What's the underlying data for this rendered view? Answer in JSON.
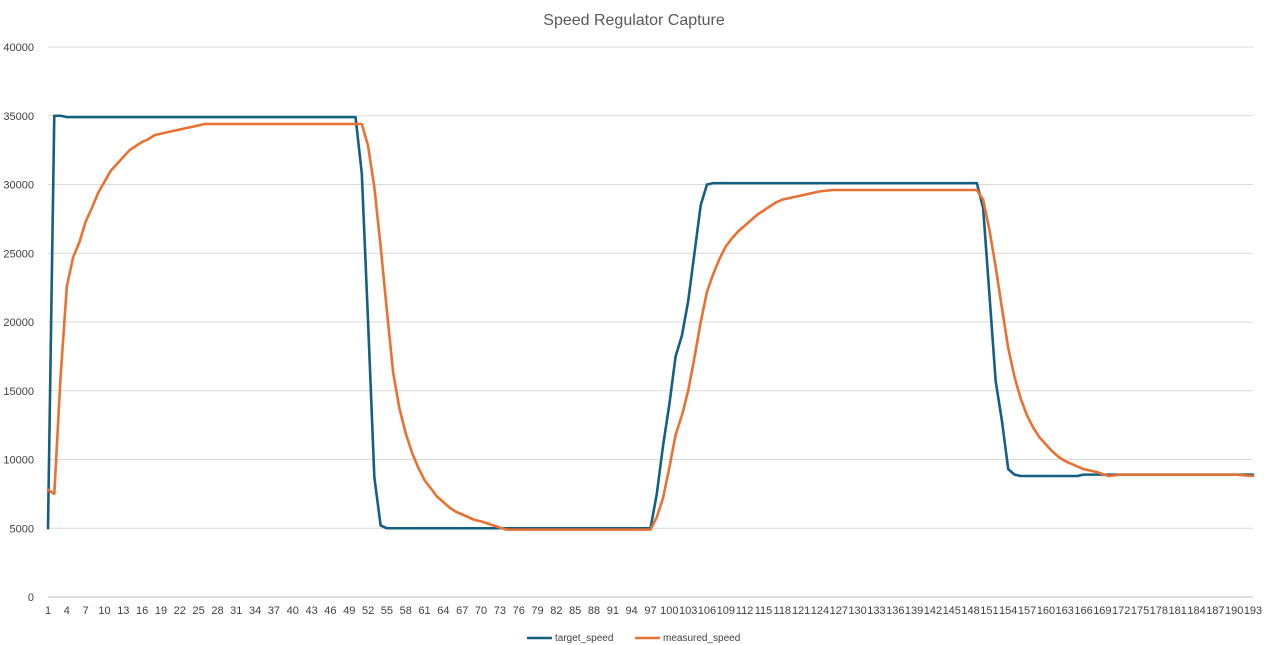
{
  "chart_data": {
    "type": "line",
    "title": "Speed Regulator Capture",
    "xlabel": "",
    "ylabel": "",
    "x_range": [
      1,
      193
    ],
    "ylim": [
      0,
      40000
    ],
    "y_ticks": [
      0,
      5000,
      10000,
      15000,
      20000,
      25000,
      30000,
      35000,
      40000
    ],
    "x_tick_start": 1,
    "x_tick_step": 3,
    "x_tick_end": 193,
    "grid": "horizontal",
    "legend_position": "bottom",
    "series": [
      {
        "name": "target_speed",
        "color": "#156082",
        "points": [
          [
            1,
            5000
          ],
          [
            2,
            35000
          ],
          [
            3,
            35000
          ],
          [
            4,
            34900
          ],
          [
            5,
            34900
          ],
          [
            10,
            34900
          ],
          [
            20,
            34900
          ],
          [
            30,
            34900
          ],
          [
            40,
            34900
          ],
          [
            50,
            34900
          ],
          [
            51,
            30800
          ],
          [
            52,
            20000
          ],
          [
            53,
            8700
          ],
          [
            54,
            5200
          ],
          [
            55,
            5000
          ],
          [
            60,
            5000
          ],
          [
            70,
            5000
          ],
          [
            80,
            5000
          ],
          [
            90,
            5000
          ],
          [
            96,
            5000
          ],
          [
            97,
            5000
          ],
          [
            98,
            7500
          ],
          [
            99,
            11000
          ],
          [
            100,
            14000
          ],
          [
            101,
            17500
          ],
          [
            102,
            19000
          ],
          [
            103,
            21500
          ],
          [
            104,
            25000
          ],
          [
            105,
            28500
          ],
          [
            106,
            30000
          ],
          [
            107,
            30100
          ],
          [
            110,
            30100
          ],
          [
            120,
            30100
          ],
          [
            130,
            30100
          ],
          [
            140,
            30100
          ],
          [
            148,
            30100
          ],
          [
            149,
            30100
          ],
          [
            150,
            28300
          ],
          [
            151,
            22000
          ],
          [
            152,
            15700
          ],
          [
            153,
            12800
          ],
          [
            154,
            9300
          ],
          [
            155,
            8900
          ],
          [
            156,
            8800
          ],
          [
            160,
            8800
          ],
          [
            165,
            8800
          ],
          [
            166,
            8900
          ],
          [
            170,
            8900
          ],
          [
            180,
            8900
          ],
          [
            190,
            8900
          ],
          [
            193,
            8900
          ]
        ]
      },
      {
        "name": "measured_speed",
        "color": "#E97132",
        "points": [
          [
            1,
            7800
          ],
          [
            2,
            7500
          ],
          [
            3,
            16000
          ],
          [
            4,
            22600
          ],
          [
            5,
            24700
          ],
          [
            6,
            25800
          ],
          [
            7,
            27300
          ],
          [
            8,
            28300
          ],
          [
            9,
            29400
          ],
          [
            10,
            30200
          ],
          [
            11,
            31000
          ],
          [
            12,
            31500
          ],
          [
            13,
            32000
          ],
          [
            14,
            32500
          ],
          [
            15,
            32800
          ],
          [
            16,
            33100
          ],
          [
            17,
            33300
          ],
          [
            18,
            33600
          ],
          [
            19,
            33700
          ],
          [
            20,
            33800
          ],
          [
            22,
            34000
          ],
          [
            24,
            34200
          ],
          [
            26,
            34400
          ],
          [
            28,
            34400
          ],
          [
            30,
            34400
          ],
          [
            35,
            34400
          ],
          [
            40,
            34400
          ],
          [
            45,
            34400
          ],
          [
            48,
            34400
          ],
          [
            50,
            34400
          ],
          [
            51,
            34400
          ],
          [
            52,
            32800
          ],
          [
            53,
            29800
          ],
          [
            54,
            25500
          ],
          [
            55,
            20800
          ],
          [
            56,
            16300
          ],
          [
            57,
            13700
          ],
          [
            58,
            11900
          ],
          [
            59,
            10500
          ],
          [
            60,
            9400
          ],
          [
            61,
            8500
          ],
          [
            62,
            7900
          ],
          [
            63,
            7300
          ],
          [
            64,
            6900
          ],
          [
            65,
            6500
          ],
          [
            66,
            6200
          ],
          [
            67,
            6000
          ],
          [
            68,
            5800
          ],
          [
            69,
            5600
          ],
          [
            70,
            5500
          ],
          [
            72,
            5200
          ],
          [
            74,
            4900
          ],
          [
            76,
            4900
          ],
          [
            80,
            4900
          ],
          [
            90,
            4900
          ],
          [
            96,
            4900
          ],
          [
            97,
            4900
          ],
          [
            98,
            5800
          ],
          [
            99,
            7200
          ],
          [
            100,
            9400
          ],
          [
            101,
            11800
          ],
          [
            102,
            13200
          ],
          [
            103,
            15000
          ],
          [
            104,
            17400
          ],
          [
            105,
            20000
          ],
          [
            106,
            22200
          ],
          [
            107,
            23500
          ],
          [
            108,
            24600
          ],
          [
            109,
            25500
          ],
          [
            110,
            26100
          ],
          [
            111,
            26600
          ],
          [
            112,
            27000
          ],
          [
            113,
            27400
          ],
          [
            114,
            27800
          ],
          [
            115,
            28100
          ],
          [
            116,
            28400
          ],
          [
            117,
            28700
          ],
          [
            118,
            28900
          ],
          [
            119,
            29000
          ],
          [
            120,
            29100
          ],
          [
            122,
            29300
          ],
          [
            124,
            29500
          ],
          [
            126,
            29600
          ],
          [
            130,
            29600
          ],
          [
            140,
            29600
          ],
          [
            148,
            29600
          ],
          [
            149,
            29600
          ],
          [
            150,
            28900
          ],
          [
            151,
            26700
          ],
          [
            152,
            24000
          ],
          [
            153,
            21000
          ],
          [
            154,
            18100
          ],
          [
            155,
            16000
          ],
          [
            156,
            14400
          ],
          [
            157,
            13200
          ],
          [
            158,
            12300
          ],
          [
            159,
            11600
          ],
          [
            160,
            11100
          ],
          [
            161,
            10600
          ],
          [
            162,
            10200
          ],
          [
            163,
            9900
          ],
          [
            164,
            9700
          ],
          [
            165,
            9500
          ],
          [
            166,
            9300
          ],
          [
            168,
            9100
          ],
          [
            170,
            8800
          ],
          [
            172,
            8900
          ],
          [
            180,
            8900
          ],
          [
            190,
            8900
          ],
          [
            193,
            8800
          ]
        ]
      }
    ]
  }
}
